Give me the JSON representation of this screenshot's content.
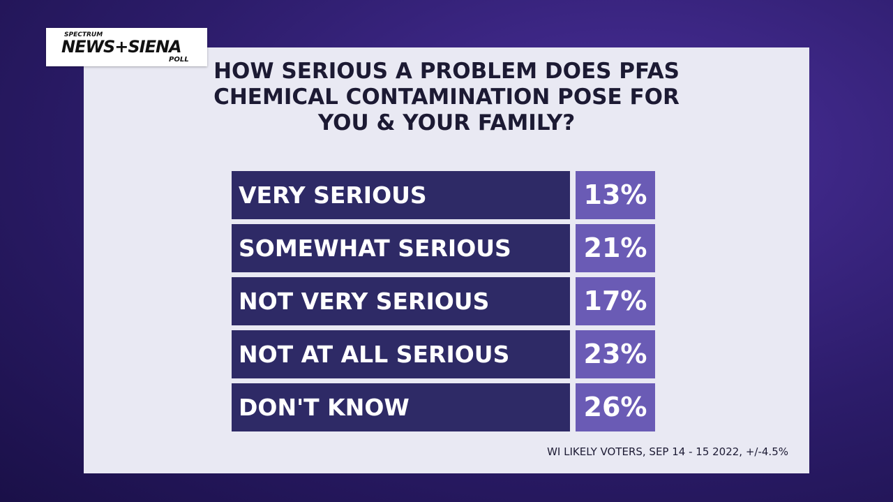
{
  "logo": {
    "top": "SPECTRUM",
    "main": "NEWS+SIENA",
    "bottom": "POLL"
  },
  "title": [
    "HOW SERIOUS A PROBLEM DOES PFAS",
    "CHEMICAL CONTAMINATION POSE FOR",
    "YOU & YOUR FAMILY?"
  ],
  "rows": [
    {
      "label": "VERY SERIOUS",
      "value": "13%"
    },
    {
      "label": "SOMEWHAT SERIOUS",
      "value": "21%"
    },
    {
      "label": "NOT VERY SERIOUS",
      "value": "17%"
    },
    {
      "label": "NOT AT ALL SERIOUS",
      "value": "23%"
    },
    {
      "label": "DON'T KNOW",
      "value": "26%"
    }
  ],
  "footnote": "WI LIKELY VOTERS, SEP 14 - 15 2022, +/-4.5%"
}
